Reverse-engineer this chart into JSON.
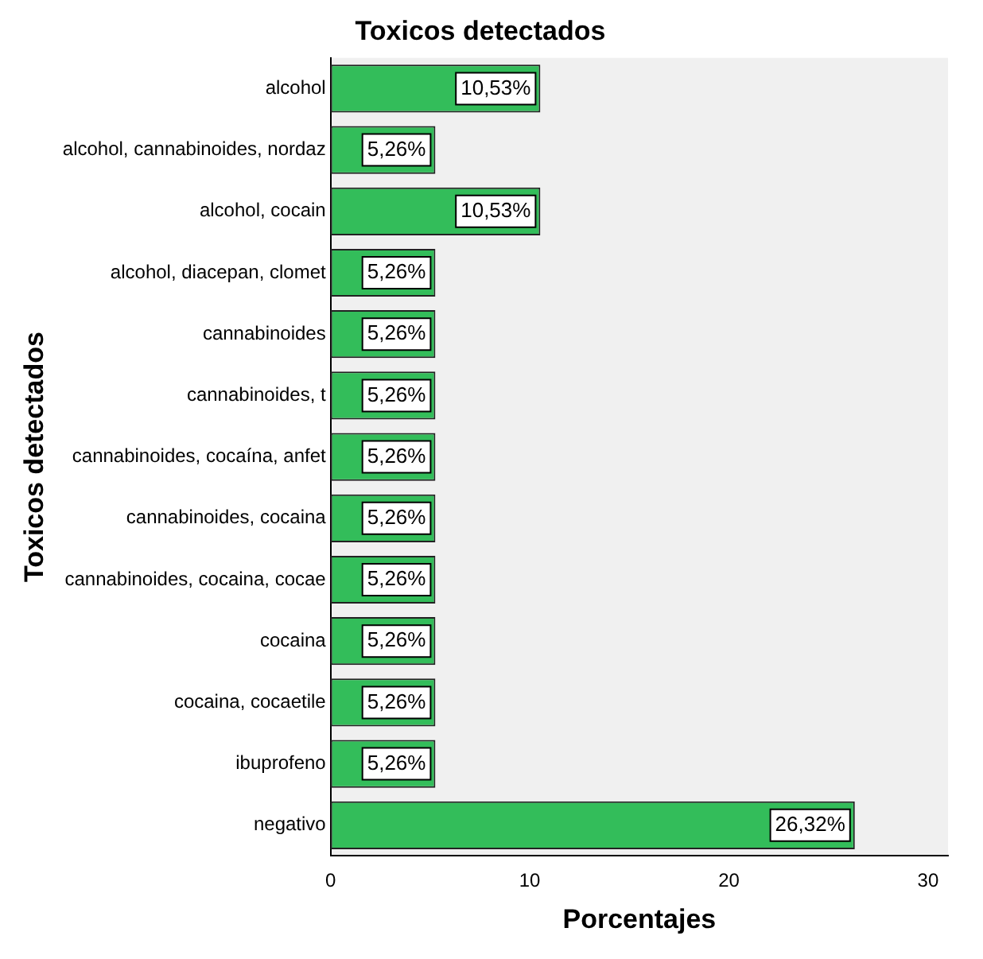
{
  "chart_data": {
    "type": "bar",
    "orientation": "horizontal",
    "title": "Toxicos detectados",
    "xlabel": "Porcentajes",
    "ylabel": "Toxicos detectados",
    "categories": [
      "alcohol",
      "alcohol, cannabinoides, nordaz",
      "alcohol, cocain",
      "alcohol, diacepan, clomet",
      "cannabinoides",
      "cannabinoides, t",
      "cannabinoides, cocaína, anfet",
      "cannabinoides, cocaina",
      "cannabinoides, cocaina, cocae",
      "cocaina",
      "cocaina, cocaetile",
      "ibuprofeno",
      "negativo"
    ],
    "values": [
      10.53,
      5.26,
      10.53,
      5.26,
      5.26,
      5.26,
      5.26,
      5.26,
      5.26,
      5.26,
      5.26,
      5.26,
      26.32
    ],
    "value_labels": [
      "10,53%",
      "5,26%",
      "10,53%",
      "5,26%",
      "5,26%",
      "5,26%",
      "5,26%",
      "5,26%",
      "5,26%",
      "5,26%",
      "5,26%",
      "5,26%",
      "26,32%"
    ],
    "color": "#33bd5a",
    "xlim": [
      0,
      31
    ],
    "xticks": [
      0,
      10,
      20,
      30
    ],
    "grid": false,
    "legend": false
  }
}
